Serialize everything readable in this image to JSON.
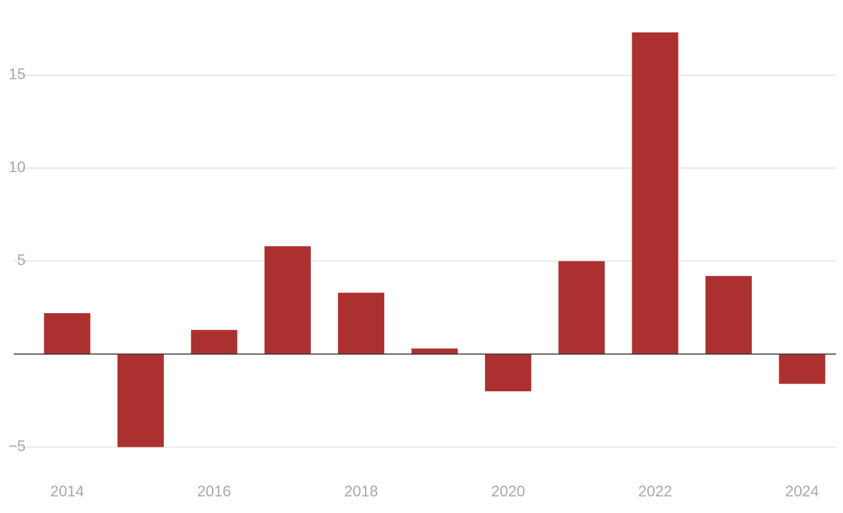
{
  "chart_data": {
    "type": "bar",
    "x": [
      2014,
      2015,
      2016,
      2017,
      2018,
      2019,
      2020,
      2021,
      2022,
      2023,
      2024
    ],
    "values": [
      2.2,
      -5.0,
      1.3,
      5.8,
      3.3,
      0.3,
      -2.0,
      5.0,
      17.3,
      4.2,
      -1.6
    ],
    "color": "#ad3030",
    "xlim": [
      2013.5,
      2024.5
    ],
    "xticks": [
      2014,
      2016,
      2018,
      2020,
      2022,
      2024
    ],
    "ylim": [
      -6.5,
      18
    ],
    "yticks": [
      {
        "value": -5,
        "label": "−5"
      },
      5,
      10,
      15
    ],
    "grid": true
  }
}
